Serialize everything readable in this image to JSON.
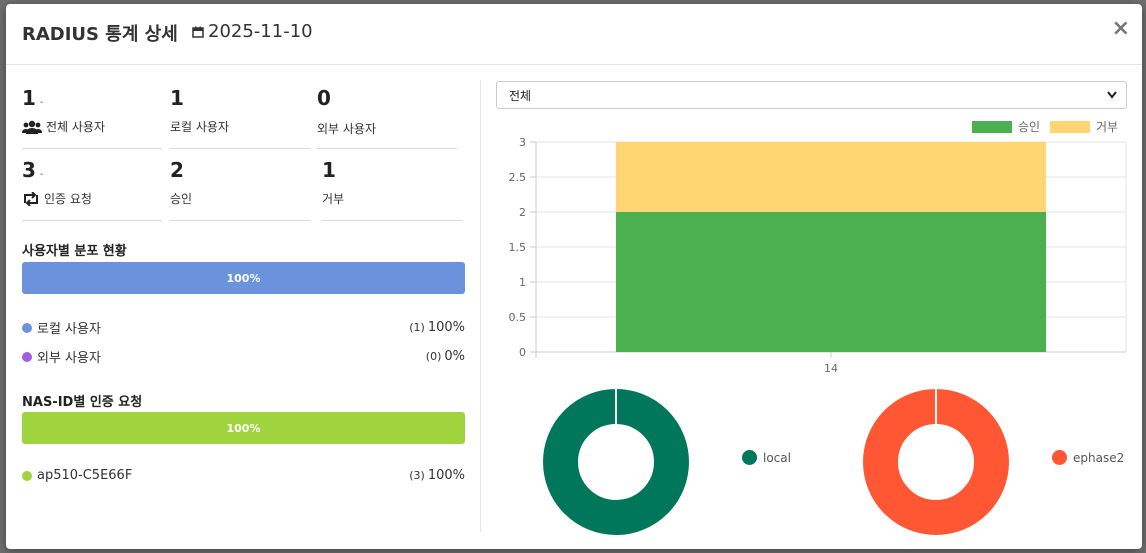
{
  "modal": {
    "title": "RADIUS 통계 상세",
    "date": "2025-11-10",
    "close": "×"
  },
  "stats": [
    {
      "value": "1",
      "suffix": "-",
      "label": "전체 사용자",
      "icon": "users-icon"
    },
    {
      "value": "1",
      "suffix": "",
      "label": "로컬 사용자",
      "icon": ""
    },
    {
      "value": "0",
      "suffix": "",
      "label": "외부 사용자",
      "icon": ""
    },
    {
      "value": "3",
      "suffix": "-",
      "label": "인증 요청",
      "icon": "retweet-icon"
    },
    {
      "value": "2",
      "suffix": "",
      "label": "승인",
      "icon": ""
    },
    {
      "value": "1",
      "suffix": "",
      "label": "거부",
      "icon": ""
    }
  ],
  "user_dist": {
    "title": "사용자별 분포 현황",
    "bar_label": "100%",
    "bar_color": "#6b93dc",
    "items": [
      {
        "label": "로컬 사용자",
        "count": "(1)",
        "percent": "100%",
        "color": "#6b93dc"
      },
      {
        "label": "외부 사용자",
        "count": "(0)",
        "percent": "0%",
        "color": "#a25ddc"
      }
    ]
  },
  "nas_dist": {
    "title": "NAS-ID별 인증 요청",
    "bar_label": "100%",
    "bar_color": "#a0d43f",
    "items": [
      {
        "label": "ap510-C5E66F",
        "count": "(3)",
        "percent": "100%",
        "color": "#a0d43f"
      }
    ]
  },
  "filter": {
    "selected": "전체"
  },
  "chart_data": [
    {
      "type": "bar",
      "stacked": true,
      "categories": [
        "14"
      ],
      "series": [
        {
          "name": "승인",
          "values": [
            2
          ],
          "color": "#4caf50"
        },
        {
          "name": "거부",
          "values": [
            1
          ],
          "color": "#ffd671"
        }
      ],
      "ylim": [
        0,
        3
      ],
      "yticks": [
        "0",
        "0.5",
        "1",
        "1.5",
        "2",
        "2.5",
        "3"
      ],
      "legend": "top-right",
      "grid": true
    },
    {
      "type": "pie",
      "donut": true,
      "labels": [
        "local"
      ],
      "values": [
        1
      ],
      "colors": [
        "#00775a"
      ]
    },
    {
      "type": "pie",
      "donut": true,
      "labels": [
        "ephase2"
      ],
      "values": [
        1
      ],
      "colors": [
        "#ff5733"
      ]
    }
  ]
}
